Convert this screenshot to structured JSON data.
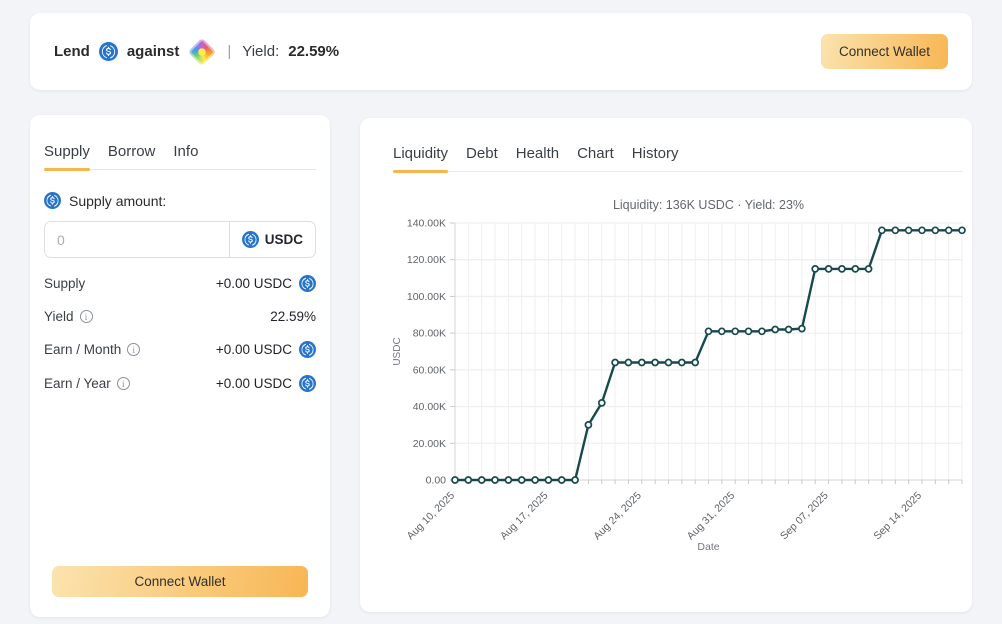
{
  "header": {
    "lend_label": "Lend",
    "against_label": "against",
    "divider": "|",
    "yield_label": "Yield:",
    "yield_value": "22.59%",
    "connect_wallet_label": "Connect Wallet"
  },
  "supply_panel": {
    "tabs": [
      "Supply",
      "Borrow",
      "Info"
    ],
    "amount_label": "Supply amount:",
    "input_placeholder": "0",
    "input_value": "",
    "input_suffix": "USDC",
    "rows": [
      {
        "label": "Supply",
        "value": "+0.00 USDC"
      },
      {
        "label": "Yield",
        "value": "22.59%"
      },
      {
        "label": "Earn / Month",
        "value": "+0.00 USDC"
      },
      {
        "label": "Earn / Year",
        "value": "+0.00 USDC"
      }
    ],
    "connect_wallet_label": "Connect Wallet"
  },
  "chart_panel": {
    "tabs": [
      "Liquidity",
      "Debt",
      "Health",
      "Chart",
      "History"
    ]
  },
  "chart_data": {
    "type": "line",
    "title": "Liquidity: 136K USDC · Yield: 23%",
    "xlabel": "Date",
    "ylabel": "USDC",
    "ylim": [
      0,
      140000
    ],
    "grid": true,
    "legend": false,
    "line_color": "#17494d",
    "marker": "open-circle",
    "y_ticks": [
      {
        "value": 0,
        "label": "0.00"
      },
      {
        "value": 20000,
        "label": "20.00K"
      },
      {
        "value": 40000,
        "label": "40.00K"
      },
      {
        "value": 60000,
        "label": "60.00K"
      },
      {
        "value": 80000,
        "label": "80.00K"
      },
      {
        "value": 100000,
        "label": "100.00K"
      },
      {
        "value": 120000,
        "label": "120.00K"
      },
      {
        "value": 140000,
        "label": "140.00K"
      }
    ],
    "x_tick_indices": [
      0,
      7,
      14,
      21,
      28,
      35
    ],
    "x_tick_labels": [
      "Aug 10, 2025",
      "Aug 17, 2025",
      "Aug 24, 2025",
      "Aug 31, 2025",
      "Sep 07, 2025",
      "Sep 14, 2025"
    ],
    "x": [
      "2025-08-10",
      "2025-08-11",
      "2025-08-12",
      "2025-08-13",
      "2025-08-14",
      "2025-08-15",
      "2025-08-16",
      "2025-08-17",
      "2025-08-18",
      "2025-08-19",
      "2025-08-20",
      "2025-08-21",
      "2025-08-22",
      "2025-08-23",
      "2025-08-24",
      "2025-08-25",
      "2025-08-26",
      "2025-08-27",
      "2025-08-28",
      "2025-08-29",
      "2025-08-30",
      "2025-08-31",
      "2025-09-01",
      "2025-09-02",
      "2025-09-03",
      "2025-09-04",
      "2025-09-05",
      "2025-09-06",
      "2025-09-07",
      "2025-09-08",
      "2025-09-09",
      "2025-09-10",
      "2025-09-11",
      "2025-09-12",
      "2025-09-13",
      "2025-09-14",
      "2025-09-15",
      "2025-09-16",
      "2025-09-17"
    ],
    "values": [
      0,
      0,
      0,
      0,
      0,
      0,
      0,
      0,
      0,
      0,
      30000,
      42000,
      64000,
      64000,
      64000,
      64000,
      64000,
      64000,
      64000,
      81000,
      81000,
      81000,
      81000,
      81000,
      82000,
      82000,
      82500,
      115000,
      115000,
      115000,
      115000,
      115000,
      136000,
      136000,
      136000,
      136000,
      136000,
      136000,
      136000
    ]
  },
  "colors": {
    "accent_orange": "#f6b64b",
    "usdc_blue": "#2775CA",
    "chart_line_teal": "#17494d",
    "page_background": "#f2f4f7"
  }
}
